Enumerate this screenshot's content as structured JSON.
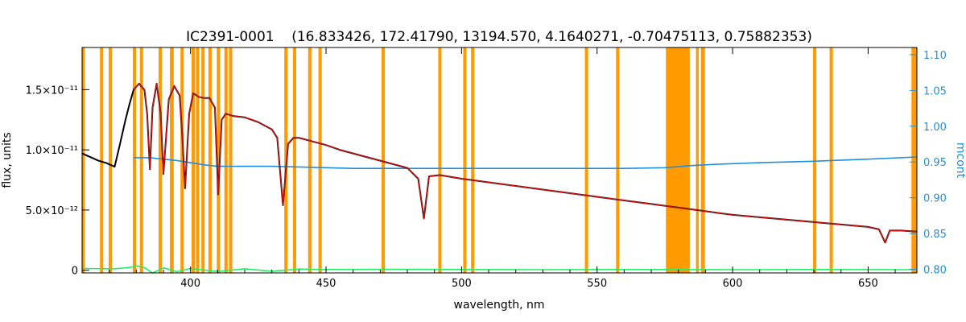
{
  "chart_data": {
    "type": "line",
    "title": "IC2391-0001    (16.833426, 172.41790, 13194.570, 4.1640271, -0.70475113, 0.75882353)",
    "xlabel": "wavelength, nm",
    "ylabel": "flux, units",
    "ylabel_right": "mcont",
    "xlim": [
      360,
      668
    ],
    "ylim": [
      -2.2e-13,
      1.85e-11
    ],
    "ylim_right": [
      0.795,
      1.11
    ],
    "x_ticks": [
      {
        "value": 400,
        "label": "400"
      },
      {
        "value": 450,
        "label": "450"
      },
      {
        "value": 500,
        "label": "500"
      },
      {
        "value": 550,
        "label": "550"
      },
      {
        "value": 600,
        "label": "600"
      },
      {
        "value": 650,
        "label": "650"
      }
    ],
    "y_ticks": [
      {
        "value": 0,
        "label": "0"
      },
      {
        "value": 5e-12,
        "label": "5.0×10⁻¹²"
      },
      {
        "value": 1e-11,
        "label": "1.0×10⁻¹¹"
      },
      {
        "value": 1.5e-11,
        "label": "1.5×10⁻¹¹"
      }
    ],
    "y_ticks_right": [
      {
        "value": 0.8,
        "label": "0.80"
      },
      {
        "value": 0.85,
        "label": "0.85"
      },
      {
        "value": 0.9,
        "label": "0.90"
      },
      {
        "value": 0.95,
        "label": "0.95"
      },
      {
        "value": 1.0,
        "label": "1.00"
      },
      {
        "value": 1.05,
        "label": "1.05"
      },
      {
        "value": 1.1,
        "label": "1.10"
      }
    ],
    "masked_bands": [
      [
        360.0,
        361.0
      ],
      [
        366.6,
        367.8
      ],
      [
        369.8,
        371.0
      ],
      [
        378.7,
        379.9
      ],
      [
        381.3,
        382.5
      ],
      [
        388.2,
        389.4
      ],
      [
        392.4,
        393.8
      ],
      [
        396.3,
        397.5
      ],
      [
        400.4,
        401.7
      ],
      [
        402.0,
        403.2
      ],
      [
        404.0,
        405.2
      ],
      [
        406.6,
        407.8
      ],
      [
        409.7,
        410.9
      ],
      [
        412.5,
        413.7
      ],
      [
        414.2,
        415.4
      ],
      [
        434.6,
        435.8
      ],
      [
        437.8,
        439.0
      ],
      [
        443.4,
        444.6
      ],
      [
        447.2,
        448.4
      ],
      [
        470.5,
        471.7
      ],
      [
        491.4,
        492.6
      ],
      [
        500.6,
        501.8
      ],
      [
        503.5,
        504.7
      ],
      [
        545.5,
        546.7
      ],
      [
        557.0,
        558.2
      ],
      [
        575.4,
        584.2
      ],
      [
        586.5,
        587.5
      ],
      [
        588.3,
        589.8
      ],
      [
        629.7,
        630.9
      ],
      [
        635.8,
        637.0
      ],
      [
        666.0,
        668.0
      ]
    ],
    "series": [
      {
        "role": "observed",
        "color": "#000000",
        "x": [
          360,
          363,
          366,
          369,
          372,
          374,
          376,
          377.5,
          379,
          381,
          383,
          384,
          385,
          386,
          387.5,
          389,
          390,
          392,
          394,
          396,
          397,
          398,
          399.5,
          401,
          403,
          405,
          407,
          409,
          410.2,
          411.5,
          413,
          416,
          420,
          425,
          430,
          432,
          434.1,
          436,
          438,
          440,
          445,
          450,
          455,
          460,
          465,
          470,
          475,
          480,
          484,
          486.1,
          488,
          492,
          500,
          510,
          520,
          530,
          540,
          550,
          560,
          570,
          580,
          590,
          600,
          610,
          620,
          630,
          640,
          650,
          654,
          656.3,
          658,
          662,
          668
        ],
        "y": [
          9.7e-12,
          9.4e-12,
          9.1e-12,
          8.9e-12,
          8.6e-12,
          1.05e-11,
          1.25e-11,
          1.38e-11,
          1.5e-11,
          1.55e-11,
          1.5e-11,
          1.3e-11,
          8.4e-12,
          1.35e-11,
          1.55e-11,
          1.3e-11,
          8e-12,
          1.42e-11,
          1.53e-11,
          1.45e-11,
          1.1e-11,
          6.8e-12,
          1.3e-11,
          1.47e-11,
          1.44e-11,
          1.43e-11,
          1.43e-11,
          1.35e-11,
          6.3e-12,
          1.25e-11,
          1.3e-11,
          1.28e-11,
          1.27e-11,
          1.23e-11,
          1.17e-11,
          1.1e-11,
          5.4e-12,
          1.05e-11,
          1.1e-11,
          1.1e-11,
          1.07e-11,
          1.04e-11,
          1e-11,
          9.7e-12,
          9.4e-12,
          9.1e-12,
          8.8e-12,
          8.5e-12,
          7.6e-12,
          4.3e-12,
          7.8e-12,
          7.9e-12,
          7.6e-12,
          7.3e-12,
          7e-12,
          6.7e-12,
          6.4e-12,
          6.1e-12,
          5.8e-12,
          5.5e-12,
          5.2e-12,
          4.9e-12,
          4.6e-12,
          4.4e-12,
          4.2e-12,
          4e-12,
          3.8e-12,
          3.6e-12,
          3.4e-12,
          2.3e-12,
          3.3e-12,
          3.3e-12,
          3.2e-12
        ]
      },
      {
        "role": "model",
        "color": "#cc1111",
        "x": [
          379,
          381,
          383,
          384,
          385,
          386,
          387.5,
          389,
          390,
          392,
          394,
          396,
          397,
          398,
          399.5,
          401,
          403,
          405,
          407,
          409,
          410.2,
          411.5,
          413,
          416,
          420,
          425,
          430,
          432,
          434.1,
          436,
          438,
          440,
          445,
          450,
          455,
          460,
          465,
          470,
          475,
          480,
          484,
          486.1,
          488,
          492,
          500,
          510,
          520,
          530,
          540,
          550,
          560,
          570,
          580,
          590,
          600,
          610,
          620,
          630,
          640,
          650,
          654,
          656.3,
          658,
          662,
          668
        ],
        "y": [
          1.5e-11,
          1.55e-11,
          1.5e-11,
          1.3e-11,
          8.4e-12,
          1.35e-11,
          1.55e-11,
          1.3e-11,
          8e-12,
          1.42e-11,
          1.53e-11,
          1.45e-11,
          1.1e-11,
          6.8e-12,
          1.3e-11,
          1.47e-11,
          1.44e-11,
          1.43e-11,
          1.43e-11,
          1.35e-11,
          6.3e-12,
          1.25e-11,
          1.3e-11,
          1.28e-11,
          1.27e-11,
          1.23e-11,
          1.17e-11,
          1.1e-11,
          5.4e-12,
          1.05e-11,
          1.1e-11,
          1.1e-11,
          1.07e-11,
          1.04e-11,
          1e-11,
          9.7e-12,
          9.4e-12,
          9.1e-12,
          8.8e-12,
          8.5e-12,
          7.6e-12,
          4.3e-12,
          7.8e-12,
          7.9e-12,
          7.6e-12,
          7.3e-12,
          7e-12,
          6.7e-12,
          6.4e-12,
          6.1e-12,
          5.8e-12,
          5.5e-12,
          5.2e-12,
          4.9e-12,
          4.6e-12,
          4.4e-12,
          4.2e-12,
          4e-12,
          3.8e-12,
          3.6e-12,
          3.4e-12,
          2.3e-12,
          3.3e-12,
          3.3e-12,
          3.2e-12
        ]
      },
      {
        "role": "mcont",
        "color": "#1f8fe0",
        "axis": "right",
        "x": [
          379,
          385,
          390,
          395,
          400,
          405,
          410,
          415,
          420,
          430,
          440,
          450,
          460,
          480,
          500,
          520,
          540,
          560,
          575,
          585,
          595,
          610,
          630,
          650,
          668
        ],
        "y": [
          0.956,
          0.956,
          0.954,
          0.952,
          0.949,
          0.946,
          0.944,
          0.944,
          0.944,
          0.944,
          0.943,
          0.942,
          0.941,
          0.941,
          0.941,
          0.941,
          0.941,
          0.941,
          0.942,
          0.945,
          0.947,
          0.949,
          0.951,
          0.954,
          0.957
        ]
      },
      {
        "role": "residual",
        "color": "#22ee66",
        "x": [
          360,
          372,
          378,
          380,
          383,
          386,
          390,
          395,
          400,
          410,
          420,
          430,
          440,
          450,
          470,
          500,
          530,
          560,
          600,
          630,
          668
        ],
        "y": [
          1.5e-13,
          1.2e-13,
          2.5e-13,
          3.6e-13,
          2.2e-13,
          -2.2e-13,
          2e-13,
          -1.2e-13,
          1.5e-13,
          -1e-13,
          1.2e-13,
          -8e-14,
          1e-13,
          6e-14,
          8e-14,
          6e-14,
          5e-14,
          6e-14,
          5e-14,
          6e-14,
          5e-14
        ]
      }
    ]
  }
}
